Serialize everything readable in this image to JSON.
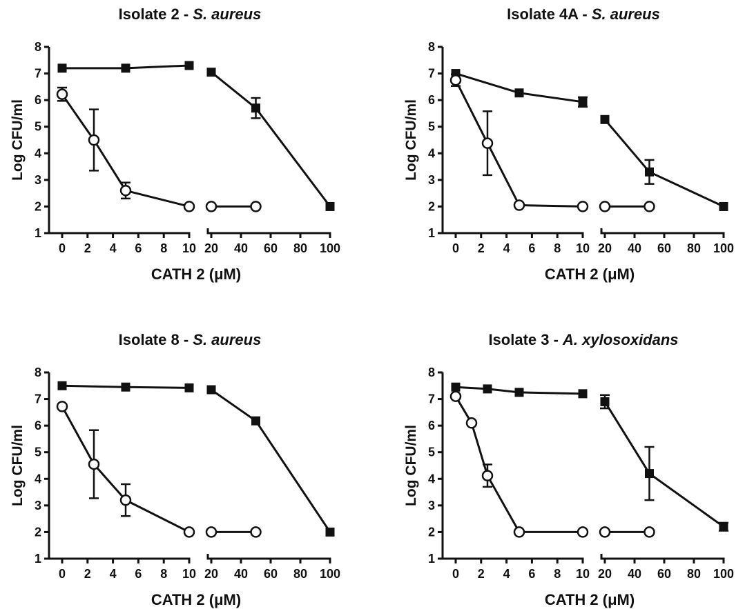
{
  "chart_data": [
    {
      "type": "line",
      "title": "Isolate 2 - ",
      "title_species": "S. aureus",
      "xlabel": "CATH 2 (μM)",
      "ylabel": "Log CFU/ml",
      "ylim": [
        1,
        8
      ],
      "yticks": [
        "1",
        "2",
        "3",
        "4",
        "5",
        "6",
        "7",
        "8"
      ],
      "x_segments": [
        {
          "xlim": [
            0,
            10
          ],
          "ticks": [
            "0",
            "2",
            "4",
            "6",
            "8",
            "10"
          ]
        },
        {
          "xlim": [
            20,
            100
          ],
          "ticks": [
            "20",
            "40",
            "60",
            "80",
            "100"
          ]
        }
      ],
      "series": [
        {
          "marker": "filled-square",
          "segments": [
            [
              {
                "x": 0,
                "y": 7.2
              },
              {
                "x": 5,
                "y": 7.2
              },
              {
                "x": 10,
                "y": 7.3
              }
            ],
            [
              {
                "x": 20,
                "y": 7.05
              },
              {
                "x": 50,
                "y": 5.7,
                "err": 0.38
              },
              {
                "x": 100,
                "y": 2.0
              }
            ]
          ]
        },
        {
          "marker": "open-circle",
          "segments": [
            [
              {
                "x": 0,
                "y": 6.22,
                "err": 0.25
              },
              {
                "x": 2.5,
                "y": 4.5,
                "err": 1.15
              },
              {
                "x": 5,
                "y": 2.6,
                "err": 0.3
              },
              {
                "x": 10,
                "y": 2.0
              }
            ],
            [
              {
                "x": 20,
                "y": 2.0
              },
              {
                "x": 50,
                "y": 2.0
              }
            ]
          ]
        }
      ]
    },
    {
      "type": "line",
      "title": "Isolate 4A - ",
      "title_species": "S. aureus",
      "xlabel": "CATH 2 (μM)",
      "ylabel": "Log CFU/ml",
      "ylim": [
        1,
        8
      ],
      "yticks": [
        "1",
        "2",
        "3",
        "4",
        "5",
        "6",
        "7",
        "8"
      ],
      "x_segments": [
        {
          "xlim": [
            0,
            10
          ],
          "ticks": [
            "0",
            "2",
            "4",
            "6",
            "8",
            "10"
          ]
        },
        {
          "xlim": [
            20,
            100
          ],
          "ticks": [
            "20",
            "40",
            "60",
            "80",
            "100"
          ]
        }
      ],
      "series": [
        {
          "marker": "filled-square",
          "segments": [
            [
              {
                "x": 0,
                "y": 7.0
              },
              {
                "x": 5,
                "y": 6.27
              },
              {
                "x": 10,
                "y": 5.93,
                "err": 0.18
              }
            ],
            [
              {
                "x": 20,
                "y": 5.27
              },
              {
                "x": 50,
                "y": 3.3,
                "err": 0.45
              },
              {
                "x": 100,
                "y": 2.0
              }
            ]
          ]
        },
        {
          "marker": "open-circle",
          "segments": [
            [
              {
                "x": 0,
                "y": 6.75,
                "err": 0.22
              },
              {
                "x": 2.5,
                "y": 4.38,
                "err": 1.2
              },
              {
                "x": 5,
                "y": 2.05
              },
              {
                "x": 10,
                "y": 2.0
              }
            ],
            [
              {
                "x": 20,
                "y": 2.0
              },
              {
                "x": 50,
                "y": 2.0
              }
            ]
          ]
        }
      ]
    },
    {
      "type": "line",
      "title": "Isolate 8 - ",
      "title_species": "S. aureus",
      "xlabel": "CATH 2 (μM)",
      "ylabel": "Log CFU/ml",
      "ylim": [
        1,
        8
      ],
      "yticks": [
        "1",
        "2",
        "3",
        "4",
        "5",
        "6",
        "7",
        "8"
      ],
      "x_segments": [
        {
          "xlim": [
            0,
            10
          ],
          "ticks": [
            "0",
            "2",
            "4",
            "6",
            "8",
            "10"
          ]
        },
        {
          "xlim": [
            20,
            100
          ],
          "ticks": [
            "20",
            "40",
            "60",
            "80",
            "100"
          ]
        }
      ],
      "series": [
        {
          "marker": "filled-square",
          "segments": [
            [
              {
                "x": 0,
                "y": 7.5
              },
              {
                "x": 5,
                "y": 7.45
              },
              {
                "x": 10,
                "y": 7.42
              }
            ],
            [
              {
                "x": 20,
                "y": 7.35
              },
              {
                "x": 50,
                "y": 6.18
              },
              {
                "x": 100,
                "y": 2.0
              }
            ]
          ]
        },
        {
          "marker": "open-circle",
          "segments": [
            [
              {
                "x": 0,
                "y": 6.72
              },
              {
                "x": 2.5,
                "y": 4.55,
                "err": 1.28
              },
              {
                "x": 5,
                "y": 3.2,
                "err": 0.6
              },
              {
                "x": 10,
                "y": 2.0
              }
            ],
            [
              {
                "x": 20,
                "y": 2.0
              },
              {
                "x": 50,
                "y": 2.0
              }
            ]
          ]
        }
      ]
    },
    {
      "type": "line",
      "title": "Isolate 3 - ",
      "title_species": "A. xylosoxidans",
      "xlabel": "CATH 2 (μM)",
      "ylabel": "Log CFU/ml",
      "ylim": [
        1,
        8
      ],
      "yticks": [
        "1",
        "2",
        "3",
        "4",
        "5",
        "6",
        "7",
        "8"
      ],
      "x_segments": [
        {
          "xlim": [
            0,
            10
          ],
          "ticks": [
            "0",
            "2",
            "4",
            "6",
            "8",
            "10"
          ]
        },
        {
          "xlim": [
            20,
            100
          ],
          "ticks": [
            "20",
            "40",
            "60",
            "80",
            "100"
          ]
        }
      ],
      "series": [
        {
          "marker": "filled-square",
          "segments": [
            [
              {
                "x": 0,
                "y": 7.45
              },
              {
                "x": 2.5,
                "y": 7.38
              },
              {
                "x": 5,
                "y": 7.25
              },
              {
                "x": 10,
                "y": 7.2
              }
            ],
            [
              {
                "x": 20,
                "y": 6.9,
                "err": 0.25
              },
              {
                "x": 50,
                "y": 4.2,
                "err": 1.0
              },
              {
                "x": 100,
                "y": 2.2,
                "err": 0.15
              }
            ]
          ]
        },
        {
          "marker": "open-circle",
          "segments": [
            [
              {
                "x": 0,
                "y": 7.1
              },
              {
                "x": 1.25,
                "y": 6.1
              },
              {
                "x": 2.5,
                "y": 4.12,
                "err": 0.42
              },
              {
                "x": 5,
                "y": 2.0
              },
              {
                "x": 10,
                "y": 2.0
              }
            ],
            [
              {
                "x": 20,
                "y": 2.0
              },
              {
                "x": 50,
                "y": 2.0
              }
            ]
          ]
        }
      ]
    }
  ]
}
